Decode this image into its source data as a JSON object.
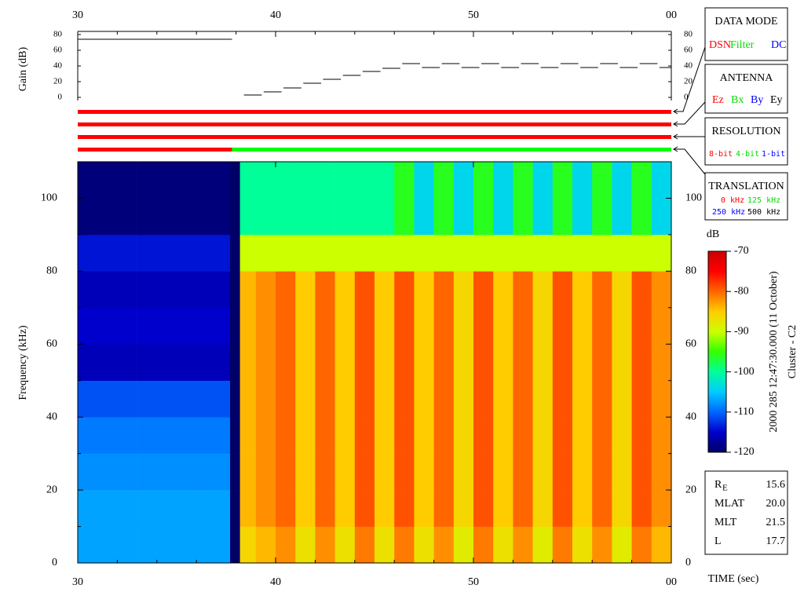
{
  "chart_data": [
    {
      "type": "step",
      "ylabel": "Gain (dB)",
      "xlim": [
        30,
        60
      ],
      "xticks": [
        30,
        40,
        50,
        {
          "value": 60,
          "label": "00"
        }
      ],
      "xticks_minor": [
        32,
        34,
        36,
        38,
        42,
        44,
        46,
        48,
        52,
        54,
        56,
        58
      ],
      "ylim": [
        -4,
        84
      ],
      "yticks": [
        0,
        20,
        40,
        60,
        80
      ],
      "color": "#000000",
      "x_start": [
        30,
        38.4,
        39.4,
        40.4,
        41.4,
        42.4,
        43.4,
        44.4,
        45.4,
        46.4,
        47.4,
        48.4,
        49.4,
        50.4,
        51.4,
        52.4,
        53.4,
        54.4,
        55.4,
        56.4,
        57.4,
        58.4,
        59.4
      ],
      "x_end": [
        37.8,
        39.3,
        40.3,
        41.3,
        42.3,
        43.3,
        44.3,
        45.3,
        46.3,
        47.3,
        48.3,
        49.3,
        50.3,
        51.3,
        52.3,
        53.3,
        54.3,
        55.3,
        56.3,
        57.3,
        58.3,
        59.3,
        60
      ],
      "values": [
        74,
        3,
        7,
        12,
        18,
        23,
        28,
        33,
        37,
        43,
        38,
        43,
        38,
        43,
        38,
        43,
        38,
        43,
        38,
        43,
        38,
        43,
        38
      ]
    },
    {
      "type": "status",
      "xlim": [
        30,
        60
      ],
      "rows": [
        {
          "segments": [
            {
              "x_start": 30,
              "x_end": 60,
              "color": "#ff0000"
            }
          ]
        },
        {
          "segments": [
            {
              "x_start": 30,
              "x_end": 60,
              "color": "#ff0000"
            }
          ]
        },
        {
          "segments": [
            {
              "x_start": 30,
              "x_end": 60,
              "color": "#ff0000"
            }
          ]
        },
        {
          "segments": [
            {
              "x_start": 30,
              "x_end": 37.8,
              "color": "#ff0000"
            },
            {
              "x_start": 37.8,
              "x_end": 60,
              "color": "#00ff00"
            }
          ]
        }
      ]
    },
    {
      "type": "heatmap",
      "xlabel": "TIME (sec)",
      "ylabel": "Frequency (kHz)",
      "xlim": [
        30,
        60
      ],
      "xticks": [
        30,
        40,
        50,
        {
          "value": 60,
          "label": "00"
        }
      ],
      "xticks_minor": [
        32,
        34,
        36,
        38,
        42,
        44,
        46,
        48,
        52,
        54,
        56,
        58
      ],
      "ylim": [
        0,
        110
      ],
      "yticks": [
        0,
        20,
        40,
        60,
        80,
        100
      ],
      "yticks_minor": [
        10,
        30,
        50,
        70,
        90,
        110
      ],
      "x_edges": [
        30,
        31,
        32,
        33,
        34,
        35,
        36,
        37,
        37.7,
        38.2,
        39,
        40,
        41,
        42,
        43,
        44,
        45,
        46,
        47,
        48,
        49,
        50,
        51,
        52,
        53,
        54,
        55,
        56,
        57,
        58,
        59,
        60
      ],
      "y_edges": [
        0,
        10,
        20,
        30,
        40,
        50,
        60,
        70,
        80,
        90,
        100,
        110
      ],
      "z": [
        [
          -107,
          -107,
          -107,
          -107,
          -107,
          -107,
          -107,
          -107,
          -120,
          -86,
          -84,
          -82,
          -87,
          -82,
          -87,
          -81,
          -87,
          -81,
          -87,
          -82,
          -88,
          -81,
          -87,
          -82,
          -88,
          -81,
          -87,
          -82,
          -88,
          -81,
          -84
        ],
        [
          -107,
          -107,
          -107,
          -107,
          -107,
          -107,
          -107,
          -107,
          -120,
          -84,
          -82,
          -80,
          -85,
          -80,
          -85,
          -79,
          -85,
          -79,
          -85,
          -80,
          -86,
          -79,
          -85,
          -80,
          -86,
          -79,
          -85,
          -80,
          -86,
          -79,
          -82
        ],
        [
          -108,
          -108,
          -108,
          -108,
          -108,
          -108,
          -108,
          -108,
          -120,
          -84,
          -82,
          -80,
          -85,
          -80,
          -85,
          -79,
          -85,
          -79,
          -85,
          -80,
          -86,
          -79,
          -85,
          -80,
          -86,
          -79,
          -85,
          -80,
          -86,
          -79,
          -82
        ],
        [
          -109,
          -109,
          -109,
          -109,
          -109,
          -109,
          -109,
          -109,
          -120,
          -84,
          -82,
          -80,
          -85,
          -80,
          -85,
          -79,
          -85,
          -79,
          -85,
          -80,
          -86,
          -79,
          -85,
          -80,
          -86,
          -79,
          -85,
          -80,
          -86,
          -79,
          -82
        ],
        [
          -111,
          -111,
          -111,
          -111,
          -111,
          -111,
          -111,
          -111,
          -120,
          -84,
          -82,
          -80,
          -85,
          -80,
          -85,
          -79,
          -85,
          -79,
          -85,
          -80,
          -86,
          -79,
          -85,
          -80,
          -86,
          -79,
          -85,
          -80,
          -86,
          -79,
          -82
        ],
        [
          -116,
          -116,
          -116,
          -116,
          -116,
          -116,
          -116,
          -116,
          -120,
          -84,
          -82,
          -80,
          -85,
          -80,
          -85,
          -79,
          -85,
          -79,
          -85,
          -80,
          -86,
          -79,
          -85,
          -80,
          -86,
          -79,
          -85,
          -80,
          -86,
          -79,
          -82
        ],
        [
          -115,
          -115,
          -115,
          -115,
          -115,
          -115,
          -115,
          -115,
          -120,
          -84,
          -82,
          -80,
          -85,
          -80,
          -85,
          -79,
          -85,
          -79,
          -85,
          -80,
          -86,
          -79,
          -85,
          -80,
          -86,
          -79,
          -85,
          -80,
          -86,
          -79,
          -82
        ],
        [
          -116,
          -116,
          -116,
          -116,
          -116,
          -116,
          -116,
          -116,
          -120,
          -84,
          -82,
          -80,
          -85,
          -80,
          -85,
          -79,
          -85,
          -79,
          -85,
          -80,
          -86,
          -79,
          -85,
          -80,
          -86,
          -79,
          -85,
          -80,
          -86,
          -79,
          -82
        ],
        [
          -114,
          -114,
          -114,
          -114,
          -114,
          -114,
          -114,
          -114,
          -120,
          -90,
          -90,
          -90,
          -90,
          -90,
          -90,
          -90,
          -90,
          -90,
          -90,
          -90,
          -90,
          -90,
          -90,
          -90,
          -90,
          -90,
          -90,
          -90,
          -90,
          -90,
          -90
        ],
        [
          -119,
          -119,
          -119,
          -119,
          -119,
          -119,
          -119,
          -119,
          -120,
          -100,
          -100,
          -100,
          -100,
          -100,
          -100,
          -100,
          -100,
          -96,
          -104,
          -96,
          -104,
          -96,
          -104,
          -96,
          -104,
          -96,
          -104,
          -96,
          -104,
          -96,
          -104
        ],
        [
          -119,
          -119,
          -119,
          -119,
          -119,
          -119,
          -119,
          -119,
          -120,
          -100,
          -100,
          -100,
          -100,
          -100,
          -100,
          -100,
          -100,
          -96,
          -104,
          -96,
          -104,
          -96,
          -104,
          -96,
          -104,
          -96,
          -104,
          -96,
          -104,
          -96,
          -104
        ]
      ],
      "zlabel": "dB",
      "zlim": [
        -120,
        -70
      ],
      "zticks": [
        -70,
        -80,
        -90,
        -100,
        -110,
        -120
      ],
      "colormap": [
        "#000066",
        "#0000cc",
        "#0066ff",
        "#00ccff",
        "#00ff99",
        "#33ff00",
        "#ccff00",
        "#ffcc00",
        "#ff6600",
        "#ff0000",
        "#cc0000"
      ]
    }
  ],
  "panels": [
    {
      "title": "DATA MODE",
      "items": [
        {
          "text": "DSN",
          "color": "#ff0000"
        },
        {
          "text": "Filter",
          "color": "#00dd00"
        },
        {
          "text": "DC",
          "color": "#0000ff"
        }
      ]
    },
    {
      "title": "ANTENNA",
      "items": [
        {
          "text": "Ez",
          "color": "#ff0000"
        },
        {
          "text": "Bx",
          "color": "#00dd00"
        },
        {
          "text": "By",
          "color": "#0000ff"
        },
        {
          "text": "Ey",
          "color": "#000000"
        }
      ]
    },
    {
      "title": "RESOLUTION",
      "items": [
        {
          "text": "8-bit",
          "color": "#ff0000"
        },
        {
          "text": "4-bit",
          "color": "#00dd00"
        },
        {
          "text": "1-bit",
          "color": "#0000ff"
        }
      ]
    },
    {
      "title": "TRANSLATION",
      "items": [
        {
          "text": "0 kHz",
          "color": "#ff0000"
        },
        {
          "text": "125 kHz",
          "color": "#00dd00"
        },
        {
          "text": "250 kHz",
          "color": "#0000ff"
        },
        {
          "text": "500 kHz",
          "color": "#000000"
        }
      ]
    }
  ],
  "caption": [
    "2000 285 12:47:30.000 (11 October)",
    "Cluster - C2"
  ],
  "info": [
    {
      "label": "R",
      "subscript": "E",
      "value": "15.6"
    },
    {
      "label": "MLAT",
      "value": "20.0"
    },
    {
      "label": "MLT",
      "value": "21.5"
    },
    {
      "label": "L",
      "value": "17.7"
    }
  ]
}
